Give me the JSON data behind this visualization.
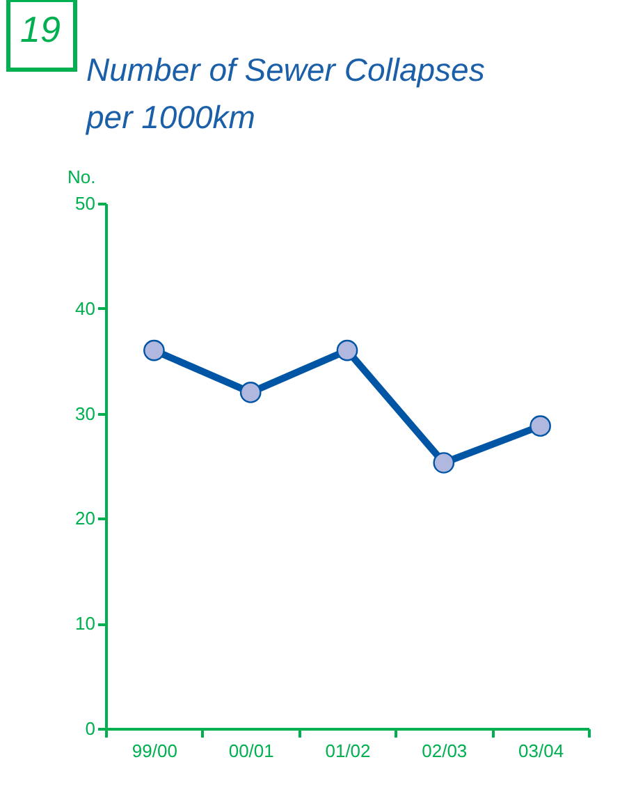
{
  "chart_data": {
    "type": "line",
    "title": [
      "Number of Sewer Collapses",
      "per 1000km"
    ],
    "ylabel": "No.",
    "annotations": [
      "19"
    ],
    "categories": [
      "99/00",
      "00/01",
      "01/02",
      "02/03",
      "03/04"
    ],
    "series": [
      {
        "color": "#0055a5",
        "values": [
          36,
          32,
          36,
          25.3,
          28.8
        ]
      }
    ],
    "ylim": [
      0,
      50
    ],
    "yticks": [
      0,
      10,
      20,
      30,
      40,
      50
    ],
    "grid": false,
    "marker": "circle",
    "line_style": "solid",
    "legend": false
  }
}
